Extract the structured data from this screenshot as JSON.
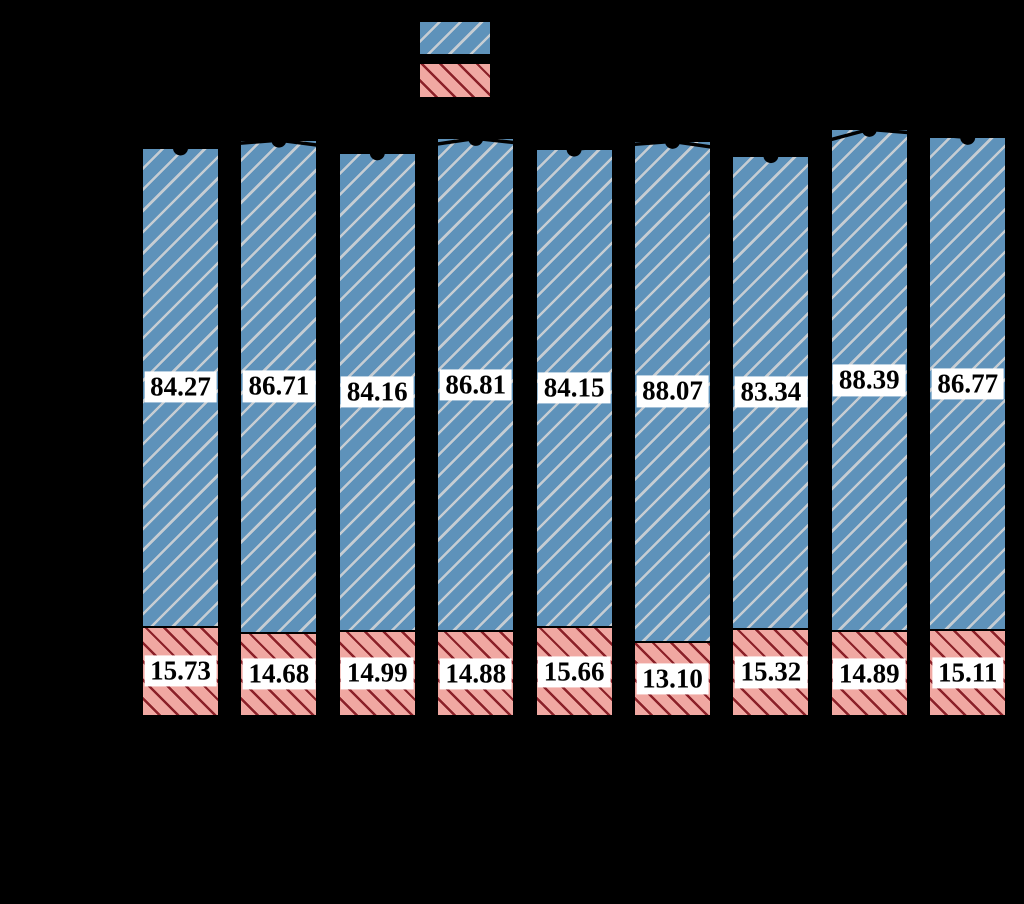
{
  "figure": {
    "background_color": "#000000",
    "axes_text_visible": false,
    "legend": {
      "position": "top-center",
      "entries": [
        {
          "name": "blue-hatched-series",
          "fill": "#5E92BA",
          "hatch": "/",
          "hatch_color": "#C6CDD3",
          "edge_color": "#000000"
        },
        {
          "name": "pink-hatched-series",
          "fill": "#F0A8A2",
          "hatch": "\\",
          "hatch_color": "#8B2028",
          "edge_color": "#000000"
        }
      ]
    }
  },
  "chart_data": {
    "type": "bar",
    "stacked": true,
    "orientation": "vertical",
    "n_bars": 9,
    "grid": false,
    "series": [
      {
        "name": "top-blue-hatched",
        "values": [
          84.27,
          86.71,
          84.16,
          86.81,
          84.15,
          88.07,
          83.34,
          88.39,
          86.77
        ],
        "labels": [
          "84.27",
          "86.71",
          "84.16",
          "86.81",
          "84.15",
          "88.07",
          "83.34",
          "88.39",
          "86.77"
        ],
        "fill": "#5E92BA",
        "hatch": "/",
        "hatch_color": "#C6CDD3"
      },
      {
        "name": "bottom-pink-hatched",
        "values": [
          15.73,
          14.68,
          14.99,
          14.88,
          15.66,
          13.1,
          15.32,
          14.89,
          15.11
        ],
        "labels": [
          "15.73",
          "14.68",
          "14.99",
          "14.88",
          "15.66",
          "13.10",
          "15.32",
          "14.89",
          "15.11"
        ],
        "fill": "#F0A8A2",
        "hatch": "\\",
        "hatch_color": "#8B2028"
      }
    ],
    "totals": [
      100.0,
      101.39,
      99.15,
      101.69,
      99.81,
      101.17,
      98.66,
      103.28,
      101.88
    ],
    "totals_overlay": {
      "style": "line-with-circle-markers",
      "color": "#000000"
    },
    "value_labels": {
      "box_fill": "#FFFFFF",
      "text_color": "#000000",
      "format": "2-decimals"
    },
    "ylim": [
      0,
      107
    ]
  }
}
